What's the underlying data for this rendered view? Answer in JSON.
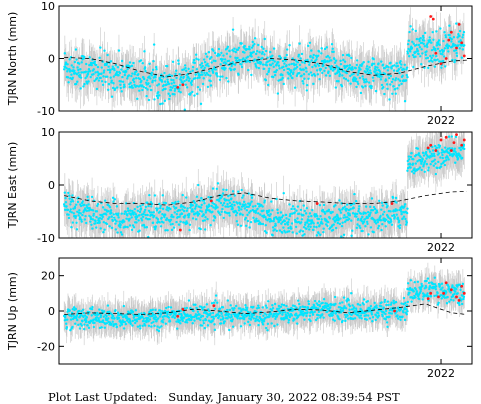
{
  "footer": {
    "label": "Plot Last Updated:",
    "timestamp": "Sunday, January 30, 2022 08:39:54 PST"
  },
  "colors": {
    "points": "#00e5ff",
    "recent_points": "#ff1a1a",
    "error_bars": "#c8c8c8",
    "model": "#000000"
  },
  "chart_data": [
    {
      "type": "scatter",
      "ylabel": "TJRN North (mm)",
      "ylim": [
        -10,
        10
      ],
      "yticks": [
        10,
        0,
        -10
      ],
      "xlim": [
        2014.6,
        2022.6
      ],
      "xticks": [
        2022
      ],
      "xtick_labels": [
        "2022"
      ],
      "grid": false,
      "model_curve": {
        "x": [
          2014.7,
          2015.2,
          2015.7,
          2016.2,
          2016.7,
          2017.2,
          2017.7,
          2018.2,
          2018.7,
          2019.2,
          2019.7,
          2020.2,
          2020.7,
          2021.2,
          2021.7,
          2022.2,
          2022.5
        ],
        "y": [
          0.2,
          0.0,
          -1.0,
          -2.5,
          -3.5,
          -2.8,
          -1.5,
          -0.5,
          0.0,
          -0.3,
          -1.0,
          -2.5,
          -3.2,
          -2.8,
          -1.5,
          -0.5,
          -0.3
        ]
      },
      "series": [
        {
          "role": "daily",
          "x_start": 2014.7,
          "x_end": 2021.35,
          "mean": [
            -1.5,
            -2.5,
            -3.0,
            -4.0,
            -4.5,
            -3.0,
            -1.0,
            0.5,
            -1.5,
            -2.0,
            -1.5,
            -2.5,
            -3.5,
            -3.0
          ],
          "scatter": 3.0,
          "error_bar": 3.0
        },
        {
          "role": "daily",
          "x_start": 2021.35,
          "x_end": 2022.45,
          "mean": [
            2.0,
            1.5,
            2.5,
            3.0
          ],
          "scatter": 3.0,
          "error_bar": 3.0
        },
        {
          "role": "rapid",
          "x": [
            2016.9,
            2017.0,
            2021.8,
            2021.85,
            2021.9,
            2022.0,
            2022.1,
            2022.15,
            2022.2,
            2022.3,
            2022.35,
            2022.4,
            2022.45
          ],
          "y": [
            -5.5,
            -5.0,
            8.0,
            7.5,
            1.0,
            -1.0,
            0.0,
            3.5,
            5.0,
            2.0,
            6.5,
            3.0,
            0.5
          ]
        }
      ]
    },
    {
      "type": "scatter",
      "ylabel": "TJRN East (mm)",
      "ylim": [
        -10,
        10
      ],
      "yticks": [
        10,
        0,
        -10
      ],
      "xlim": [
        2014.6,
        2022.6
      ],
      "xticks": [
        2022
      ],
      "xtick_labels": [
        "2022"
      ],
      "grid": false,
      "model_curve": {
        "x": [
          2014.7,
          2015.2,
          2015.7,
          2016.2,
          2016.7,
          2017.2,
          2017.7,
          2018.2,
          2018.7,
          2019.2,
          2019.7,
          2020.2,
          2020.7,
          2021.2,
          2021.7,
          2022.2,
          2022.5
        ],
        "y": [
          -2.0,
          -3.0,
          -3.5,
          -3.5,
          -3.8,
          -3.2,
          -2.0,
          -1.5,
          -2.5,
          -3.0,
          -3.2,
          -3.5,
          -3.5,
          -3.0,
          -2.0,
          -1.3,
          -1.2
        ]
      },
      "series": [
        {
          "role": "daily",
          "x_start": 2014.7,
          "x_end": 2021.35,
          "mean": [
            -4.0,
            -5.5,
            -6.5,
            -5.5,
            -6.0,
            -5.0,
            -3.5,
            -4.0,
            -6.5,
            -7.0,
            -6.5,
            -6.0,
            -6.0,
            -5.0
          ],
          "scatter": 2.5,
          "error_bar": 3.0
        },
        {
          "role": "daily",
          "x_start": 2021.35,
          "x_end": 2022.45,
          "mean": [
            4.0,
            5.0,
            5.5,
            6.5
          ],
          "scatter": 2.0,
          "error_bar": 3.0
        },
        {
          "role": "rapid",
          "x": [
            2016.95,
            2017.55,
            2019.6,
            2021.05,
            2021.75,
            2021.8,
            2021.9,
            2022.0,
            2022.1,
            2022.2,
            2022.25,
            2022.3,
            2022.4,
            2022.45
          ],
          "y": [
            -8.5,
            -3.0,
            -3.5,
            -3.5,
            7.0,
            7.5,
            6.5,
            8.5,
            9.0,
            6.5,
            8.0,
            9.5,
            7.5,
            8.5
          ]
        }
      ]
    },
    {
      "type": "scatter",
      "ylabel": "TJRN Up (mm)",
      "ylim": [
        -30,
        30
      ],
      "yticks": [
        20,
        0,
        -20
      ],
      "xlim": [
        2014.6,
        2022.6
      ],
      "xticks": [
        2022
      ],
      "xtick_labels": [
        "2022"
      ],
      "grid": false,
      "model_curve": {
        "x": [
          2014.7,
          2015.2,
          2015.7,
          2016.2,
          2016.7,
          2017.2,
          2017.7,
          2018.2,
          2018.7,
          2019.2,
          2019.7,
          2020.2,
          2020.7,
          2021.2,
          2021.7,
          2022.2,
          2022.5
        ],
        "y": [
          -2.0,
          -1.0,
          -1.5,
          -2.0,
          -1.0,
          1.0,
          0.0,
          -1.5,
          -0.5,
          1.0,
          0.5,
          -1.0,
          0.5,
          2.0,
          4.0,
          -1.0,
          -2.0
        ]
      },
      "series": [
        {
          "role": "daily",
          "x_start": 2014.7,
          "x_end": 2021.35,
          "mean": [
            -3.0,
            -4.0,
            -5.0,
            -4.0,
            -3.0,
            -2.0,
            -3.0,
            -2.0,
            -2.0,
            0.0,
            1.0,
            0.0,
            0.0,
            1.0
          ],
          "scatter": 5.0,
          "error_bar": 7.0
        },
        {
          "role": "daily",
          "x_start": 2021.35,
          "x_end": 2022.45,
          "mean": [
            10.0,
            12.0,
            11.0,
            10.0
          ],
          "scatter": 5.0,
          "error_bar": 7.0
        },
        {
          "role": "rapid",
          "x": [
            2016.9,
            2017.0,
            2017.6,
            2021.1,
            2021.75,
            2021.8,
            2021.95,
            2022.05,
            2022.1,
            2022.2,
            2022.3,
            2022.35,
            2022.4,
            2022.45
          ],
          "y": [
            -3.0,
            1.0,
            3.0,
            0.0,
            7.0,
            10.0,
            8.0,
            10.0,
            16.0,
            12.0,
            8.0,
            6.0,
            14.0,
            10.0
          ]
        }
      ]
    }
  ]
}
